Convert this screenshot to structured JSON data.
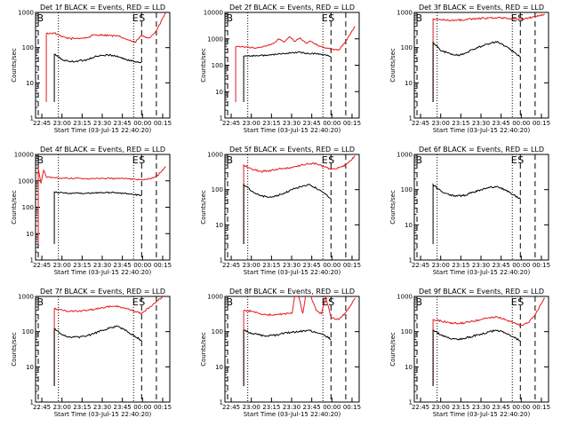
{
  "figure": {
    "background": "#ffffff"
  },
  "chart_data": [
    {
      "type": "line",
      "title": "Det 1f BLACK = Events, RED = LLD",
      "ylabel": "Counts/sec",
      "xlabel": "Start Time (03-Jul-15 22:40:20)",
      "x_ticks": [
        "22:45",
        "23:00",
        "23:15",
        "23:30",
        "23:45",
        "00:00",
        "00:15"
      ],
      "x_minutes_from_start": [
        4.67,
        19.67,
        34.67,
        49.67,
        64.67,
        79.67,
        94.67
      ],
      "xlim_minutes": [
        0,
        100
      ],
      "y_scale": "log",
      "ylim": [
        1,
        1000
      ],
      "y_ticks": [
        "1",
        "10",
        "100",
        "1000"
      ],
      "markers": {
        "B": 1,
        "E": 72,
        "S": 77
      },
      "dashed_lines": [
        2,
        79,
        90
      ],
      "dotted_lines": [
        17,
        73
      ],
      "series": [
        {
          "color": "#e41a1c",
          "data_start": 8,
          "x": [
            8,
            14,
            20,
            26,
            32,
            38,
            44,
            50,
            56,
            62,
            68,
            74,
            79,
            85,
            90,
            97
          ],
          "values": [
            250,
            260,
            200,
            180,
            185,
            190,
            230,
            230,
            220,
            210,
            170,
            140,
            220,
            190,
            300,
            1000
          ]
        },
        {
          "color": "#000000",
          "data_start": 14,
          "x": [
            14,
            20,
            26,
            32,
            38,
            44,
            50,
            56,
            62,
            68,
            74,
            79
          ],
          "values": [
            65,
            45,
            40,
            42,
            45,
            55,
            60,
            62,
            55,
            45,
            40,
            38
          ]
        }
      ]
    },
    {
      "type": "line",
      "title": "Det 2f BLACK = Events, RED = LLD",
      "ylabel": "Counts/sec",
      "xlabel": "Start Time (03-Jul-15 22:40:20)",
      "x_ticks": [
        "22:45",
        "23:00",
        "23:15",
        "23:30",
        "23:45",
        "00:00",
        "00:15"
      ],
      "x_minutes_from_start": [
        4.67,
        19.67,
        34.67,
        49.67,
        64.67,
        79.67,
        94.67
      ],
      "xlim_minutes": [
        0,
        100
      ],
      "y_scale": "log",
      "ylim": [
        1,
        10000
      ],
      "y_ticks": [
        "1",
        "10",
        "100",
        "1000",
        "10000"
      ],
      "markers": {
        "B": 1,
        "E": 72,
        "S": 77
      },
      "dashed_lines": [
        2,
        79,
        90
      ],
      "dotted_lines": [
        17,
        73
      ],
      "series": [
        {
          "color": "#e41a1c",
          "data_start": 8,
          "x": [
            8,
            12,
            18,
            24,
            30,
            36,
            40,
            44,
            48,
            52,
            56,
            60,
            64,
            68,
            72,
            76,
            80,
            85,
            90,
            97
          ],
          "values": [
            500,
            500,
            480,
            450,
            520,
            650,
            1000,
            750,
            1200,
            800,
            1100,
            700,
            800,
            600,
            500,
            450,
            400,
            380,
            800,
            3000
          ]
        },
        {
          "color": "#000000",
          "data_start": 14,
          "x": [
            14,
            20,
            26,
            32,
            38,
            44,
            50,
            56,
            62,
            68,
            74,
            79
          ],
          "values": [
            220,
            230,
            230,
            240,
            260,
            280,
            300,
            310,
            280,
            270,
            250,
            210
          ]
        }
      ]
    },
    {
      "type": "line",
      "title": "Det 3f BLACK = Events, RED = LLD",
      "ylabel": "Counts/sec",
      "xlabel": "Start Time (03-Jul-15 22:40:20)",
      "x_ticks": [
        "22:45",
        "23:00",
        "23:15",
        "23:30",
        "23:45",
        "00:00",
        "00:15"
      ],
      "x_minutes_from_start": [
        4.67,
        19.67,
        34.67,
        49.67,
        64.67,
        79.67,
        94.67
      ],
      "xlim_minutes": [
        0,
        100
      ],
      "y_scale": "log",
      "ylim": [
        1,
        1000
      ],
      "y_ticks": [
        "1",
        "10",
        "100",
        "1000"
      ],
      "markers": {
        "B": 1,
        "E": 72,
        "S": 77
      },
      "dashed_lines": [
        2,
        79,
        90
      ],
      "dotted_lines": [
        17,
        73
      ],
      "series": [
        {
          "color": "#e41a1c",
          "data_start": 14,
          "x": [
            14,
            20,
            26,
            32,
            38,
            44,
            50,
            56,
            62,
            68,
            74,
            79,
            85,
            90,
            97
          ],
          "values": [
            650,
            620,
            600,
            600,
            620,
            650,
            680,
            700,
            700,
            680,
            660,
            640,
            700,
            750,
            900
          ]
        },
        {
          "color": "#000000",
          "data_start": 14,
          "x": [
            14,
            20,
            26,
            32,
            38,
            44,
            50,
            56,
            62,
            68,
            74,
            79
          ],
          "values": [
            140,
            80,
            70,
            60,
            70,
            90,
            110,
            130,
            150,
            110,
            75,
            55
          ]
        }
      ]
    },
    {
      "type": "line",
      "title": "Det 4f BLACK = Events, RED = LLD",
      "ylabel": "Counts/sec",
      "xlabel": "Start Time (03-Jul-15 22:40:20)",
      "x_ticks": [
        "22:45",
        "23:00",
        "23:15",
        "23:30",
        "23:45",
        "00:00",
        "00:15"
      ],
      "x_minutes_from_start": [
        4.67,
        19.67,
        34.67,
        49.67,
        64.67,
        79.67,
        94.67
      ],
      "xlim_minutes": [
        0,
        100
      ],
      "y_scale": "log",
      "ylim": [
        1,
        10000
      ],
      "y_ticks": [
        "1",
        "10",
        "100",
        "1000",
        "10000"
      ],
      "markers": {
        "B": 1,
        "E": 72,
        "S": 77
      },
      "dashed_lines": [
        2,
        79,
        90
      ],
      "dotted_lines": [
        17,
        73
      ],
      "series": [
        {
          "color": "#e41a1c",
          "data_start": 2,
          "x": [
            2,
            4,
            6,
            8,
            14,
            20,
            26,
            32,
            38,
            44,
            50,
            56,
            62,
            68,
            74,
            79,
            85,
            90,
            97
          ],
          "values": [
            3000,
            800,
            2500,
            1400,
            1300,
            1250,
            1250,
            1250,
            1200,
            1200,
            1250,
            1250,
            1200,
            1200,
            1150,
            1100,
            1200,
            1400,
            3500
          ]
        },
        {
          "color": "#000000",
          "data_start": 14,
          "x": [
            14,
            20,
            26,
            32,
            38,
            44,
            50,
            56,
            62,
            68,
            74,
            79
          ],
          "values": [
            380,
            350,
            340,
            340,
            340,
            350,
            360,
            360,
            350,
            320,
            300,
            280
          ]
        }
      ]
    },
    {
      "type": "line",
      "title": "Det 5f BLACK = Events, RED = LLD",
      "ylabel": "Counts/sec",
      "xlabel": "Start Time (03-Jul-15 22:40:20)",
      "x_ticks": [
        "22:45",
        "23:00",
        "23:15",
        "23:30",
        "23:45",
        "00:00",
        "00:15"
      ],
      "x_minutes_from_start": [
        4.67,
        19.67,
        34.67,
        49.67,
        64.67,
        79.67,
        94.67
      ],
      "xlim_minutes": [
        0,
        100
      ],
      "y_scale": "log",
      "ylim": [
        1,
        1000
      ],
      "y_ticks": [
        "1",
        "10",
        "100",
        "1000"
      ],
      "markers": {
        "B": 1,
        "E": 72,
        "S": 77
      },
      "dashed_lines": [
        2,
        79,
        90
      ],
      "dotted_lines": [
        17,
        73
      ],
      "series": [
        {
          "color": "#e41a1c",
          "data_start": 14,
          "x": [
            14,
            20,
            26,
            32,
            38,
            44,
            50,
            56,
            62,
            68,
            74,
            79,
            85,
            90,
            97
          ],
          "values": [
            500,
            380,
            330,
            340,
            380,
            400,
            420,
            480,
            550,
            550,
            450,
            380,
            420,
            500,
            900
          ]
        },
        {
          "color": "#000000",
          "data_start": 14,
          "x": [
            14,
            20,
            26,
            32,
            38,
            44,
            50,
            56,
            62,
            68,
            74,
            79
          ],
          "values": [
            140,
            90,
            70,
            60,
            65,
            80,
            100,
            120,
            140,
            110,
            80,
            55
          ]
        }
      ]
    },
    {
      "type": "line",
      "title": "Det 6f BLACK = Events, RED = LLD",
      "ylabel": "Counts/sec",
      "xlabel": "Start Time (03-Jul-15 22:40:20)",
      "x_ticks": [
        "22:45",
        "23:00",
        "23:15",
        "23:30",
        "23:45",
        "00:00",
        "00:15"
      ],
      "x_minutes_from_start": [
        4.67,
        19.67,
        34.67,
        49.67,
        64.67,
        79.67,
        94.67
      ],
      "xlim_minutes": [
        0,
        100
      ],
      "y_scale": "log",
      "ylim": [
        1,
        1000
      ],
      "y_ticks": [
        "1",
        "10",
        "100",
        "1000"
      ],
      "markers": {
        "B": 1,
        "E": 72,
        "S": 77
      },
      "dashed_lines": [
        2,
        79,
        90
      ],
      "dotted_lines": [
        17,
        73
      ],
      "series": [
        {
          "color": "#000000",
          "data_start": 14,
          "x": [
            14,
            20,
            26,
            32,
            38,
            44,
            50,
            56,
            62,
            68,
            74,
            79
          ],
          "values": [
            140,
            90,
            70,
            65,
            70,
            85,
            100,
            115,
            125,
            95,
            70,
            55
          ]
        }
      ]
    },
    {
      "type": "line",
      "title": "Det 7f BLACK = Events, RED = LLD",
      "ylabel": "Counts/sec",
      "xlabel": "Start Time (03-Jul-15 22:40:20)",
      "x_ticks": [
        "22:45",
        "23:00",
        "23:15",
        "23:30",
        "23:45",
        "00:00",
        "00:15"
      ],
      "x_minutes_from_start": [
        4.67,
        19.67,
        34.67,
        49.67,
        64.67,
        79.67,
        94.67
      ],
      "xlim_minutes": [
        0,
        100
      ],
      "y_scale": "log",
      "ylim": [
        1,
        1000
      ],
      "y_ticks": [
        "1",
        "10",
        "100",
        "1000"
      ],
      "markers": {
        "B": 1,
        "E": 72,
        "S": 77
      },
      "dashed_lines": [
        2,
        79,
        90
      ],
      "dotted_lines": [
        17,
        73
      ],
      "series": [
        {
          "color": "#e41a1c",
          "data_start": 14,
          "x": [
            14,
            20,
            26,
            32,
            38,
            44,
            50,
            56,
            62,
            68,
            74,
            79,
            85,
            90,
            97
          ],
          "values": [
            450,
            400,
            380,
            380,
            400,
            430,
            480,
            520,
            520,
            450,
            380,
            330,
            500,
            700,
            1200
          ]
        },
        {
          "color": "#000000",
          "data_start": 14,
          "x": [
            14,
            20,
            26,
            32,
            38,
            44,
            50,
            56,
            62,
            68,
            74,
            79
          ],
          "values": [
            120,
            80,
            70,
            70,
            75,
            90,
            110,
            130,
            140,
            105,
            75,
            55
          ]
        }
      ]
    },
    {
      "type": "line",
      "title": "Det 8f BLACK = Events, RED = LLD",
      "ylabel": "Counts/sec",
      "xlabel": "Start Time (03-Jul-15 22:40:20)",
      "x_ticks": [
        "22:45",
        "23:00",
        "23:15",
        "23:30",
        "23:45",
        "00:00",
        "00:15"
      ],
      "x_minutes_from_start": [
        4.67,
        19.67,
        34.67,
        49.67,
        64.67,
        79.67,
        94.67
      ],
      "xlim_minutes": [
        0,
        100
      ],
      "y_scale": "log",
      "ylim": [
        1,
        1000
      ],
      "y_ticks": [
        "1",
        "10",
        "100",
        "1000"
      ],
      "markers": {
        "B": 1,
        "E": 72,
        "S": 77
      },
      "dashed_lines": [
        2,
        79,
        90
      ],
      "dotted_lines": [
        17,
        73
      ],
      "series": [
        {
          "color": "#e41a1c",
          "data_start": 14,
          "x": [
            14,
            20,
            26,
            32,
            38,
            44,
            50,
            52,
            55,
            58,
            60,
            64,
            68,
            72,
            75,
            79,
            85,
            90,
            97
          ],
          "values": [
            400,
            380,
            320,
            300,
            300,
            320,
            330,
            1000,
            1000,
            330,
            1000,
            1000,
            400,
            320,
            1000,
            260,
            220,
            350,
            900
          ]
        },
        {
          "color": "#000000",
          "data_start": 14,
          "x": [
            14,
            20,
            26,
            32,
            38,
            44,
            50,
            56,
            62,
            68,
            74,
            79
          ],
          "values": [
            110,
            90,
            80,
            75,
            80,
            90,
            95,
            100,
            110,
            95,
            80,
            60
          ]
        }
      ]
    },
    {
      "type": "line",
      "title": "Det 9f BLACK = Events, RED = LLD",
      "ylabel": "Counts/sec",
      "xlabel": "Start Time (03-Jul-15 22:40:20)",
      "x_ticks": [
        "22:45",
        "23:00",
        "23:15",
        "23:30",
        "23:45",
        "00:00",
        "00:15"
      ],
      "x_minutes_from_start": [
        4.67,
        19.67,
        34.67,
        49.67,
        64.67,
        79.67,
        94.67
      ],
      "xlim_minutes": [
        0,
        100
      ],
      "y_scale": "log",
      "ylim": [
        1,
        1000
      ],
      "y_ticks": [
        "1",
        "10",
        "100",
        "1000"
      ],
      "markers": {
        "B": 1,
        "E": 72,
        "S": 77
      },
      "dashed_lines": [
        2,
        79,
        90
      ],
      "dotted_lines": [
        17,
        73
      ],
      "series": [
        {
          "color": "#e41a1c",
          "data_start": 14,
          "x": [
            14,
            20,
            26,
            32,
            38,
            44,
            50,
            56,
            62,
            68,
            74,
            79,
            85,
            90,
            97
          ],
          "values": [
            220,
            200,
            180,
            170,
            180,
            200,
            220,
            250,
            260,
            220,
            180,
            150,
            180,
            300,
            900
          ]
        },
        {
          "color": "#000000",
          "data_start": 14,
          "x": [
            14,
            20,
            26,
            32,
            38,
            44,
            50,
            56,
            62,
            68,
            74,
            79
          ],
          "values": [
            110,
            80,
            65,
            60,
            65,
            75,
            85,
            100,
            110,
            90,
            70,
            55
          ]
        }
      ]
    }
  ]
}
